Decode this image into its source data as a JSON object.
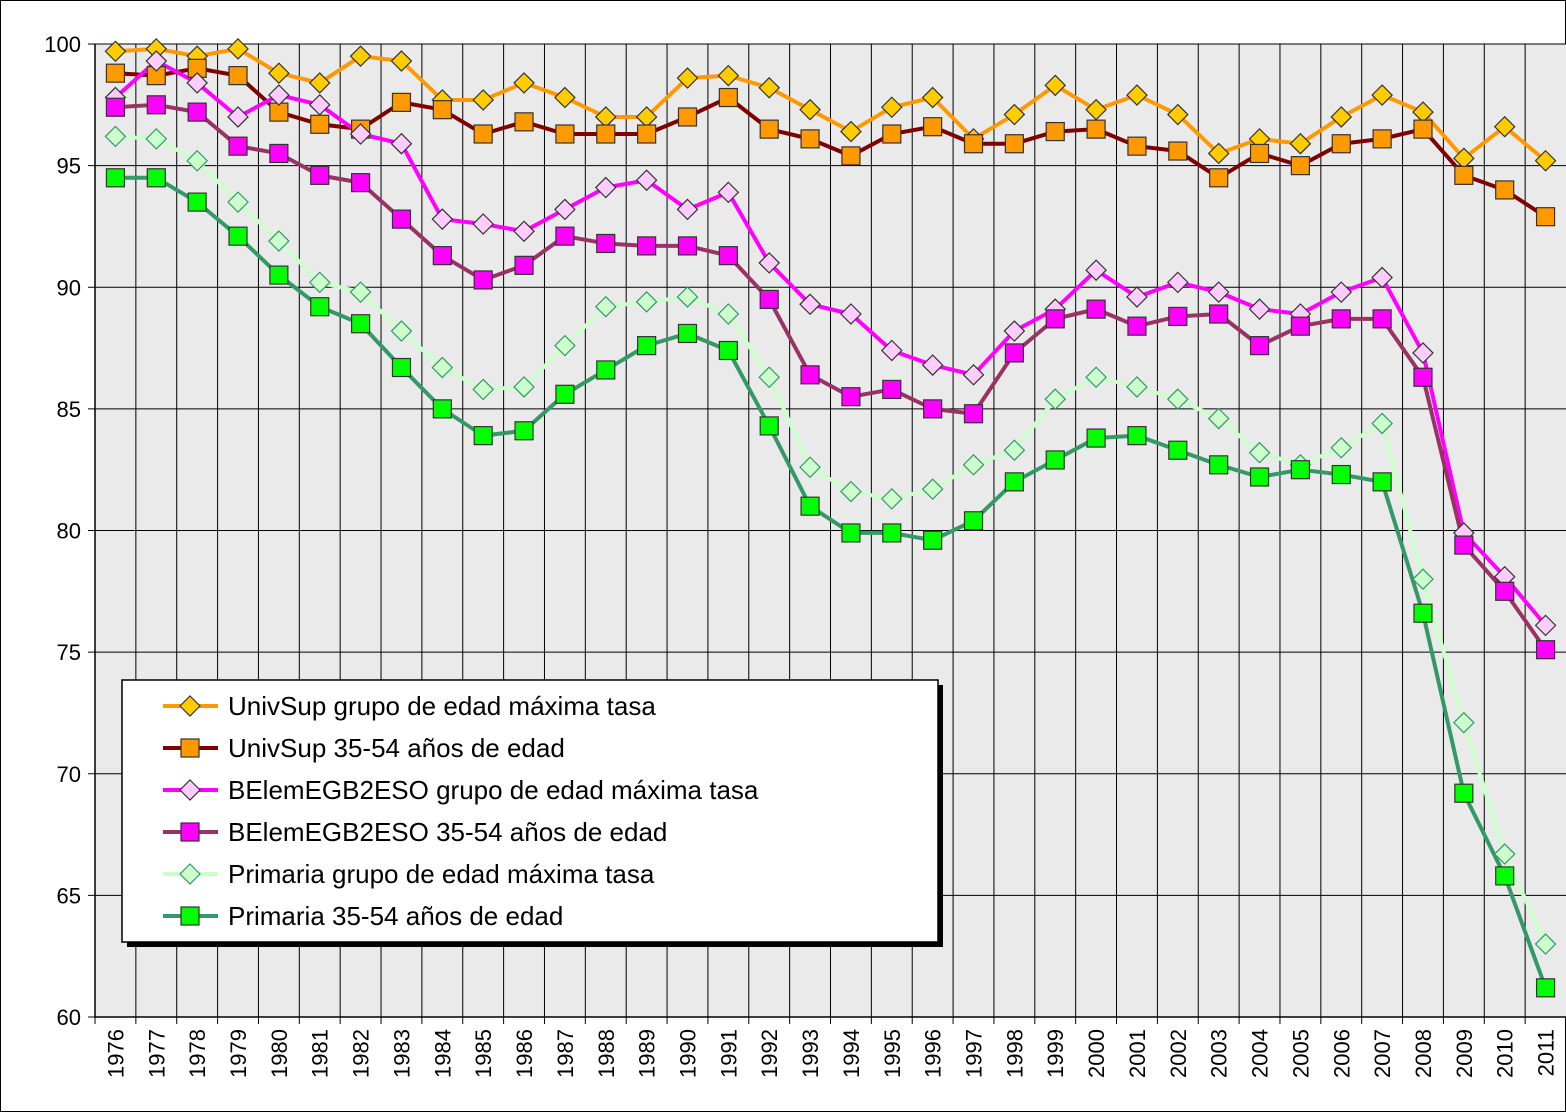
{
  "chart_data": {
    "type": "line",
    "categories": [
      "1976",
      "1977",
      "1978",
      "1979",
      "1980",
      "1981",
      "1982",
      "1983",
      "1984",
      "1985",
      "1986",
      "1987",
      "1988",
      "1989",
      "1990",
      "1991",
      "1992",
      "1993",
      "1994",
      "1995",
      "1996",
      "1997",
      "1998",
      "1999",
      "2000",
      "2001",
      "2002",
      "2003",
      "2004",
      "2005",
      "2006",
      "2007",
      "2008",
      "2009",
      "2010",
      "2011"
    ],
    "ylim": [
      60,
      100
    ],
    "yticks": [
      60,
      65,
      70,
      75,
      80,
      85,
      90,
      95,
      100
    ],
    "grid": true,
    "legend": "lower left",
    "series": [
      {
        "name": "UnivSup grupo de edad máxima tasa",
        "color": "#ff9900",
        "marker": "diamond",
        "marker_color": "#ffcc00",
        "values": [
          99.7,
          99.8,
          99.5,
          99.8,
          98.8,
          98.4,
          99.5,
          99.3,
          97.7,
          97.7,
          98.4,
          97.8,
          97.0,
          97.0,
          98.6,
          98.7,
          98.2,
          97.3,
          96.4,
          97.4,
          97.8,
          96.1,
          97.1,
          98.3,
          97.3,
          97.9,
          97.1,
          95.5,
          96.1,
          95.9,
          97.0,
          97.9,
          97.2,
          95.3,
          96.6,
          95.2
        ]
      },
      {
        "name": "UnivSup 35-54 años de edad",
        "color": "#800000",
        "marker": "square",
        "marker_color": "#ff9900",
        "values": [
          98.8,
          98.7,
          99.0,
          98.7,
          97.2,
          96.7,
          96.5,
          97.6,
          97.3,
          96.3,
          96.8,
          96.3,
          96.3,
          96.3,
          97.0,
          97.8,
          96.5,
          96.1,
          95.4,
          96.3,
          96.6,
          95.9,
          95.9,
          96.4,
          96.5,
          95.8,
          95.6,
          94.5,
          95.5,
          95.0,
          95.9,
          96.1,
          96.5,
          94.6,
          94.0,
          92.9
        ]
      },
      {
        "name": "BElemEGB2ESO grupo de edad máxima tasa",
        "color": "#ff00ff",
        "marker": "diamond",
        "marker_color": "#ffccff",
        "values": [
          97.8,
          99.3,
          98.4,
          97.0,
          97.9,
          97.5,
          96.3,
          95.9,
          92.8,
          92.6,
          92.3,
          93.2,
          94.1,
          94.4,
          93.2,
          93.9,
          91.0,
          89.3,
          88.9,
          87.4,
          86.8,
          86.4,
          88.2,
          89.1,
          90.7,
          89.6,
          90.2,
          89.8,
          89.1,
          88.9,
          89.8,
          90.4,
          87.3,
          79.9,
          78.1,
          76.1
        ]
      },
      {
        "name": "BElemEGB2ESO 35-54 años de edad",
        "color": "#993366",
        "marker": "square",
        "marker_color": "#ff00ff",
        "values": [
          97.4,
          97.5,
          97.2,
          95.8,
          95.5,
          94.6,
          94.3,
          92.8,
          91.3,
          90.3,
          90.9,
          92.1,
          91.8,
          91.7,
          91.7,
          91.3,
          89.5,
          86.4,
          85.5,
          85.8,
          85.0,
          84.8,
          87.3,
          88.7,
          89.1,
          88.4,
          88.8,
          88.9,
          87.6,
          88.4,
          88.7,
          88.7,
          86.3,
          79.4,
          77.5,
          75.1
        ]
      },
      {
        "name": "Primaria grupo de edad máxima tasa",
        "color": "#ccffcc",
        "marker": "diamond",
        "marker_color": "#ccffcc",
        "values": [
          96.2,
          96.1,
          95.2,
          93.5,
          91.9,
          90.2,
          89.8,
          88.2,
          86.7,
          85.8,
          85.9,
          87.6,
          89.2,
          89.4,
          89.6,
          88.9,
          86.3,
          82.6,
          81.6,
          81.3,
          81.7,
          82.7,
          83.3,
          85.4,
          86.3,
          85.9,
          85.4,
          84.6,
          83.2,
          82.7,
          83.4,
          84.4,
          78.0,
          72.1,
          66.7,
          63.0
        ]
      },
      {
        "name": "Primaria 35-54 años de edad",
        "color": "#339966",
        "marker": "square",
        "marker_color": "#00ff00",
        "values": [
          94.5,
          94.5,
          93.5,
          92.1,
          90.5,
          89.2,
          88.5,
          86.7,
          85.0,
          83.9,
          84.1,
          85.6,
          86.6,
          87.6,
          88.1,
          87.4,
          84.3,
          81.0,
          79.9,
          79.9,
          79.6,
          80.4,
          82.0,
          82.9,
          83.8,
          83.9,
          83.3,
          82.7,
          82.2,
          82.5,
          82.3,
          82.0,
          76.6,
          69.2,
          65.8,
          61.2
        ]
      }
    ]
  }
}
